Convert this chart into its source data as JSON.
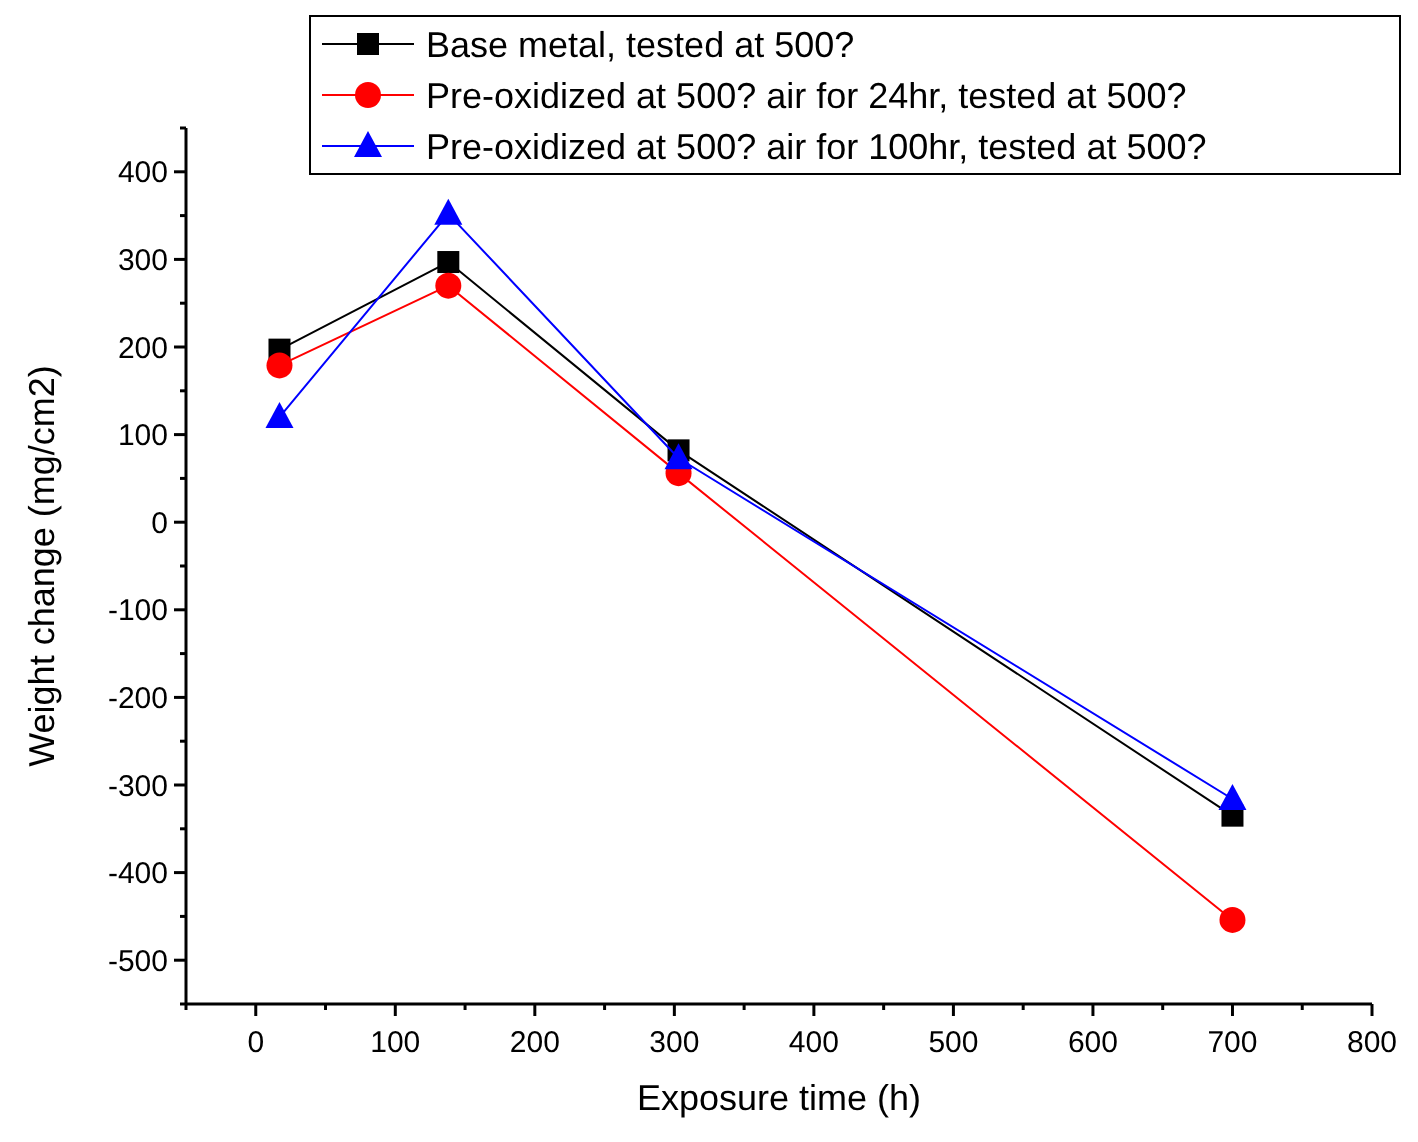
{
  "chart_data": {
    "type": "line",
    "xlabel": "Exposure time (h)",
    "ylabel": "Weight change (mg/cm2)",
    "xlim": [
      -50,
      800
    ],
    "xticks": [
      {
        "value": -50,
        "label": null
      },
      0,
      {
        "value": 50,
        "label": null
      },
      100,
      {
        "value": 150,
        "label": null
      },
      200,
      {
        "value": 250,
        "label": null
      },
      300,
      {
        "value": 350,
        "label": null
      },
      400,
      {
        "value": 450,
        "label": null
      },
      500,
      {
        "value": 550,
        "label": null
      },
      600,
      {
        "value": 650,
        "label": null
      },
      700,
      {
        "value": 750,
        "label": null
      },
      800
    ],
    "ylim": [
      -550,
      450
    ],
    "yticks": [
      {
        "value": -550,
        "label": null
      },
      -500,
      {
        "value": -450,
        "label": null
      },
      -400,
      {
        "value": -350,
        "label": null
      },
      -300,
      {
        "value": -250,
        "label": null
      },
      -200,
      {
        "value": -150,
        "label": null
      },
      -100,
      {
        "value": -50,
        "label": null
      },
      0,
      {
        "value": 50,
        "label": null
      },
      100,
      {
        "value": 150,
        "label": null
      },
      200,
      {
        "value": 250,
        "label": null
      },
      300,
      {
        "value": 350,
        "label": null
      },
      400,
      {
        "value": 450,
        "label": null
      }
    ],
    "x": [
      17,
      138,
      303,
      700
    ],
    "series": [
      {
        "name": "Base metal, tested at 500?",
        "color": "#000000",
        "marker": "square",
        "values": [
          197,
          297,
          82,
          -335
        ]
      },
      {
        "name": "Pre-oxidized at 500?  air for 24hr, tested at 500?",
        "color": "#ff0000",
        "marker": "circle",
        "values": [
          179,
          270,
          56,
          -454
        ]
      },
      {
        "name": "Pre-oxidized at 500?  air for 100hr, tested at 500?",
        "color": "#0000ff",
        "marker": "triangle",
        "values": [
          120,
          352,
          73,
          -316
        ]
      }
    ],
    "legend": "top right",
    "grid": false,
    "line_style": "solid"
  }
}
